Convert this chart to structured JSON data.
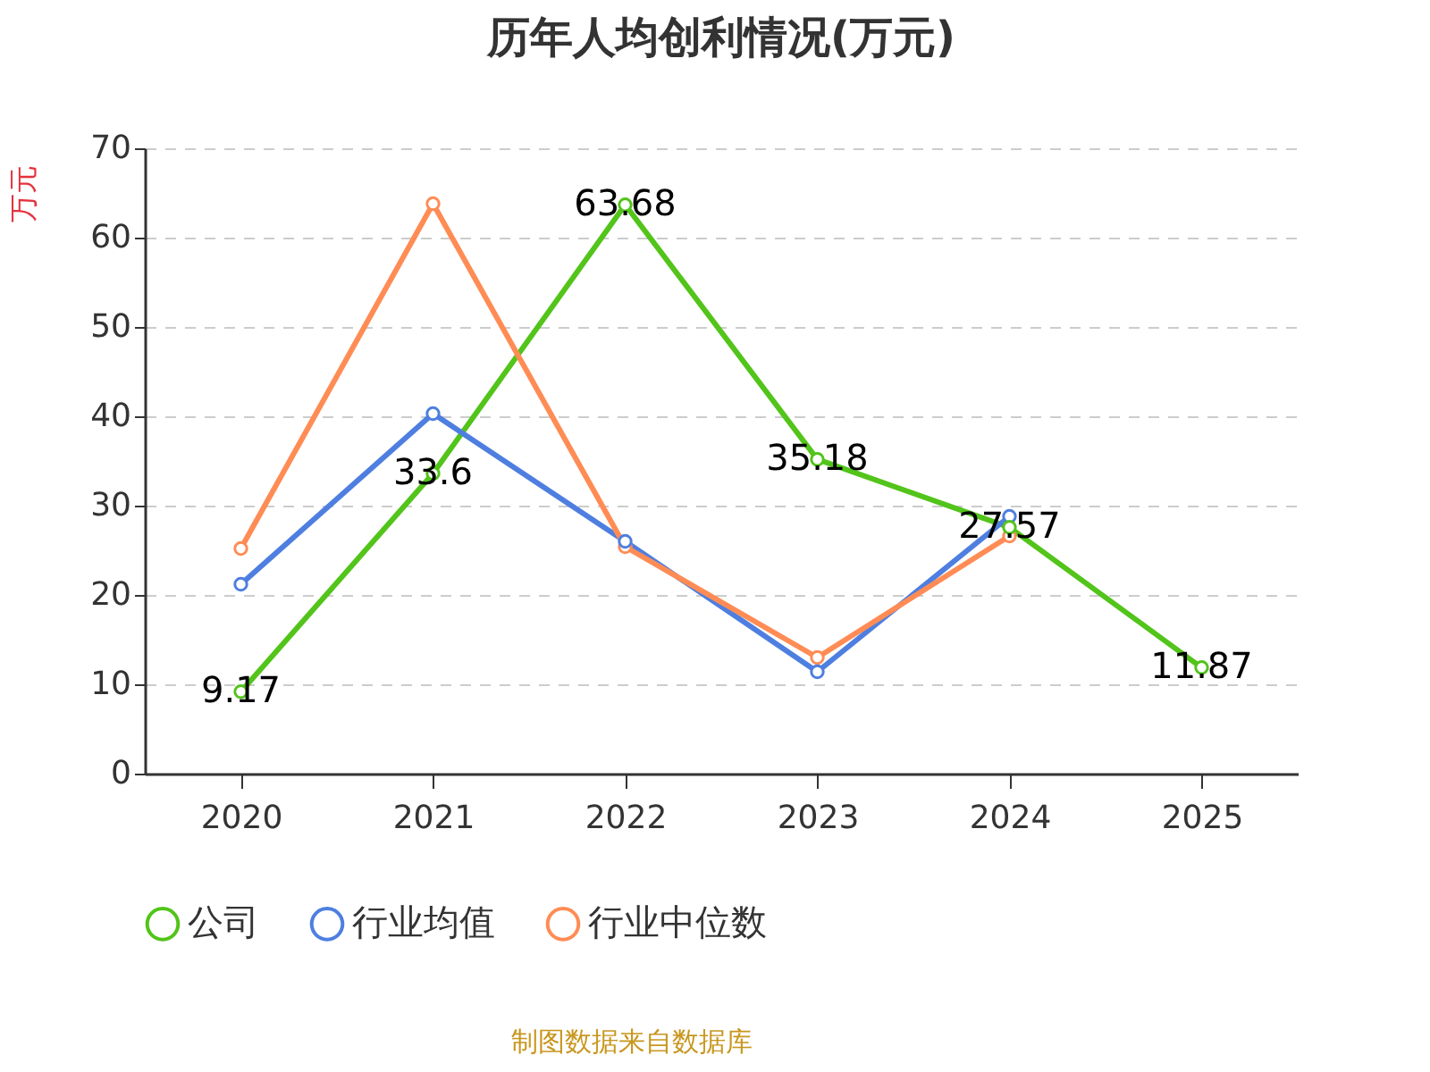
{
  "chart_data": {
    "type": "line",
    "title": "历年人均创利情况(万元)",
    "ylabel": "万元",
    "categories": [
      "2020",
      "2021",
      "2022",
      "2023",
      "2024",
      "2025"
    ],
    "series": [
      {
        "name": "公司",
        "color": "#52c41a",
        "values": [
          9.17,
          33.6,
          63.68,
          35.18,
          27.57,
          11.87
        ],
        "value_labels": [
          "9.17",
          "33.6",
          "63.68",
          "35.18",
          "27.57",
          "11.87"
        ]
      },
      {
        "name": "行业均值",
        "color": "#4e7fe0",
        "values": [
          21.2,
          40.3,
          26.0,
          11.4,
          28.8,
          null
        ]
      },
      {
        "name": "行业中位数",
        "color": "#ff8c55",
        "values": [
          25.2,
          63.8,
          25.4,
          13.0,
          26.6,
          null
        ]
      }
    ],
    "ylim": [
      0,
      70
    ],
    "yticks": [
      0,
      10,
      20,
      30,
      40,
      50,
      60,
      70
    ],
    "grid": "y",
    "legend": "bottom",
    "marker": "circle",
    "line_style": "solid",
    "annotations": [
      "制图数据来自数据库"
    ]
  }
}
